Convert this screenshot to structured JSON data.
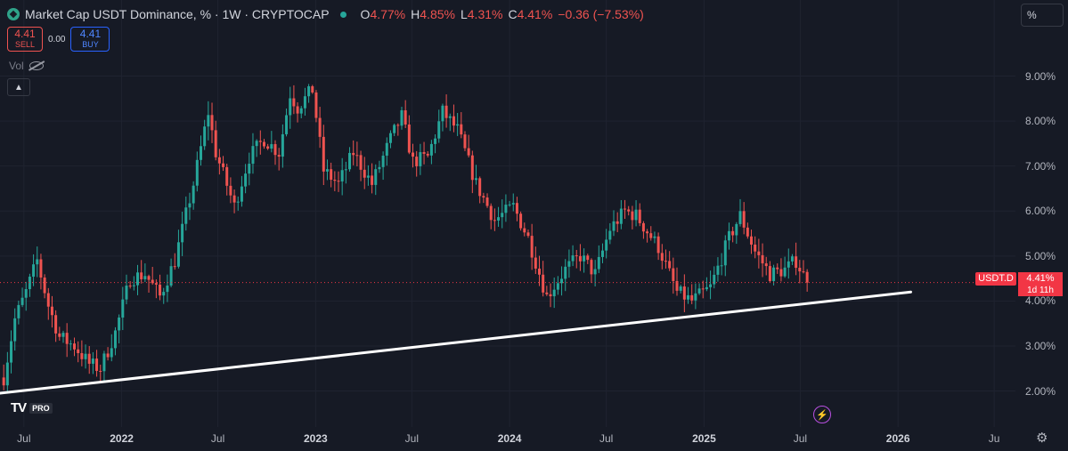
{
  "header": {
    "title": "Market Cap USDT Dominance, % · 1W · CRYPTOCAP",
    "ohlc": [
      {
        "k": "O",
        "v": "4.77%"
      },
      {
        "k": "H",
        "v": "4.85%"
      },
      {
        "k": "L",
        "v": "4.31%"
      },
      {
        "k": "C",
        "v": "4.41%"
      },
      {
        "k": "",
        "v": "−0.36 (−7.53%)"
      }
    ]
  },
  "trade": {
    "sell_value": "4.41",
    "sell_label": "SELL",
    "spread": "0.00",
    "buy_value": "4.41",
    "buy_label": "BUY"
  },
  "volume_label": "Vol",
  "scale_mode": "%",
  "price_badge": {
    "symbol": "USDT.D",
    "value": "4.41%",
    "countdown": "1d 11h"
  },
  "branding": {
    "logo_text": "TV",
    "pro": "PRO"
  },
  "colors": {
    "up": "#26a69a",
    "down": "#ef5350",
    "trendline": "#ffffff",
    "background": "#161a25",
    "last_price": "#f23645"
  },
  "icons": [
    "chevron-up-icon",
    "eye-off-icon",
    "lightning-icon",
    "gear-icon"
  ],
  "chart_data": {
    "type": "candlestick",
    "symbol": "USDT.D",
    "interval": "1W",
    "yaxis": {
      "ticks": [
        "9.00%",
        "8.00%",
        "7.00%",
        "6.00%",
        "5.00%",
        "4.00%",
        "3.00%",
        "2.00%"
      ],
      "ylim": [
        1.2,
        9.9
      ]
    },
    "xaxis": {
      "ticks": [
        "Jul",
        "2022",
        "Jul",
        "2023",
        "Jul",
        "2024",
        "Jul",
        "2025",
        "Jul",
        "2026",
        "Ju"
      ],
      "xlim": [
        "2021-05-17",
        "2026-08-10"
      ]
    },
    "last": 4.41,
    "trendline": {
      "from": [
        "2021-05-17",
        1.95
      ],
      "to": [
        "2026-01-25",
        4.2
      ]
    },
    "anchors": [
      [
        "2021-05-24",
        2.3
      ],
      [
        "2021-06-14",
        3.6
      ],
      [
        "2021-07-05",
        4.2
      ],
      [
        "2021-07-26",
        4.9
      ],
      [
        "2021-08-16",
        3.9
      ],
      [
        "2021-09-06",
        3.2
      ],
      [
        "2021-10-04",
        3.0
      ],
      [
        "2021-11-01",
        2.6
      ],
      [
        "2021-11-22",
        2.5
      ],
      [
        "2021-12-20",
        3.3
      ],
      [
        "2022-01-17",
        4.5
      ],
      [
        "2022-02-14",
        4.6
      ],
      [
        "2022-03-14",
        4.1
      ],
      [
        "2022-04-11",
        4.9
      ],
      [
        "2022-05-16",
        6.6
      ],
      [
        "2022-06-13",
        8.2
      ],
      [
        "2022-06-27",
        7.3
      ],
      [
        "2022-08-01",
        6.1
      ],
      [
        "2022-08-29",
        7.2
      ],
      [
        "2022-09-26",
        7.6
      ],
      [
        "2022-10-24",
        7.3
      ],
      [
        "2022-11-14",
        8.6
      ],
      [
        "2022-11-28",
        8.3
      ],
      [
        "2022-12-26",
        8.7
      ],
      [
        "2023-01-16",
        6.9
      ],
      [
        "2023-02-13",
        6.6
      ],
      [
        "2023-03-13",
        7.3
      ],
      [
        "2023-04-17",
        6.6
      ],
      [
        "2023-05-22",
        7.6
      ],
      [
        "2023-06-12",
        8.1
      ],
      [
        "2023-07-03",
        7.1
      ],
      [
        "2023-07-31",
        7.2
      ],
      [
        "2023-08-28",
        8.2
      ],
      [
        "2023-09-25",
        7.8
      ],
      [
        "2023-10-30",
        6.6
      ],
      [
        "2023-12-04",
        5.8
      ],
      [
        "2024-01-08",
        6.1
      ],
      [
        "2024-02-05",
        5.4
      ],
      [
        "2024-03-11",
        4.1
      ],
      [
        "2024-04-15",
        4.7
      ],
      [
        "2024-05-13",
        5.0
      ],
      [
        "2024-06-10",
        4.6
      ],
      [
        "2024-07-08",
        5.6
      ],
      [
        "2024-08-05",
        6.0
      ],
      [
        "2024-08-26",
        5.9
      ],
      [
        "2024-10-07",
        5.2
      ],
      [
        "2024-11-11",
        4.2
      ],
      [
        "2024-12-09",
        4.0
      ],
      [
        "2025-01-13",
        4.3
      ],
      [
        "2025-02-17",
        5.4
      ],
      [
        "2025-03-10",
        5.9
      ],
      [
        "2025-04-07",
        5.1
      ],
      [
        "2025-05-05",
        4.6
      ],
      [
        "2025-06-02",
        4.7
      ],
      [
        "2025-06-23",
        4.9
      ],
      [
        "2025-07-14",
        4.41
      ]
    ]
  }
}
